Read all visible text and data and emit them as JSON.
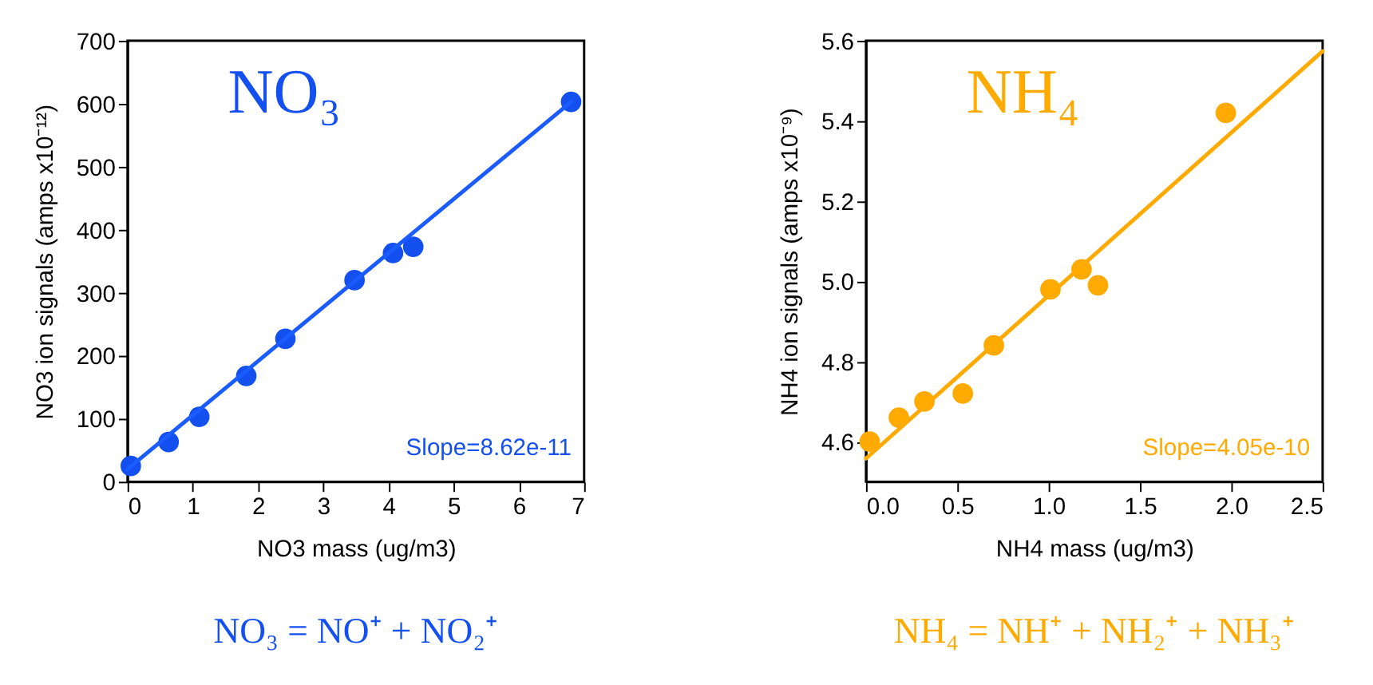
{
  "chart_data": [
    {
      "type": "scatter",
      "xlabel": "NO3 mass (ug/m3)",
      "ylabel": "NO3 ion signals (amps x10⁻¹²)",
      "xlim": [
        0,
        7
      ],
      "ylim": [
        0,
        700
      ],
      "xticks": [
        0,
        1,
        2,
        3,
        4,
        5,
        6,
        7
      ],
      "yticks": [
        0,
        100,
        200,
        300,
        400,
        500,
        600,
        700
      ],
      "grid": false,
      "marker": "circle",
      "x": [
        0.05,
        0.63,
        1.1,
        1.82,
        2.42,
        3.48,
        4.07,
        4.38,
        6.8
      ],
      "series": [
        {
          "color": "#1450f0",
          "values": [
            25,
            63,
            103,
            168,
            227,
            320,
            363,
            373,
            603
          ]
        },
        {
          "type": "line",
          "marker": "none",
          "color": "#1a5cff",
          "x": [
            0,
            6.8
          ],
          "values": [
            20,
            603
          ]
        }
      ],
      "annotations": [
        "NO₃",
        "Slope=8.62e-11",
        "NO₃ = NO⁺ + NO₂⁺"
      ]
    },
    {
      "type": "scatter",
      "xlabel": "NH4 mass (ug/m3)",
      "ylabel": "NH4 ion signals (amps x10⁻⁹)",
      "xlim": [
        0,
        2.5
      ],
      "ylim": [
        4.5,
        5.6
      ],
      "xticks": [
        {
          "value": 0,
          "label": "0.0"
        },
        0.5,
        {
          "value": 1,
          "label": "1.0"
        },
        1.5,
        {
          "value": 2,
          "label": "2.0"
        },
        2.5
      ],
      "yticks": [
        4.6,
        4.8,
        {
          "value": 5,
          "label": "5.0"
        },
        5.2,
        5.4,
        5.6
      ],
      "grid": false,
      "marker": "circle",
      "x": [
        0.02,
        0.18,
        0.32,
        0.53,
        0.7,
        1.01,
        1.18,
        1.27,
        1.97
      ],
      "series": [
        {
          "color": "#ffaa00",
          "values": [
            4.6,
            4.66,
            4.7,
            4.72,
            4.84,
            4.98,
            5.03,
            4.99,
            5.42
          ]
        },
        {
          "type": "line",
          "marker": "none",
          "color": "#ffaa00",
          "x": [
            0,
            2.5
          ],
          "values": [
            4.558,
            5.574
          ]
        }
      ],
      "annotations": [
        "NH₄",
        "Slope=4.05e-10",
        "NH₄ = NH⁺ + NH₂⁺ + NH₃⁺"
      ]
    }
  ]
}
